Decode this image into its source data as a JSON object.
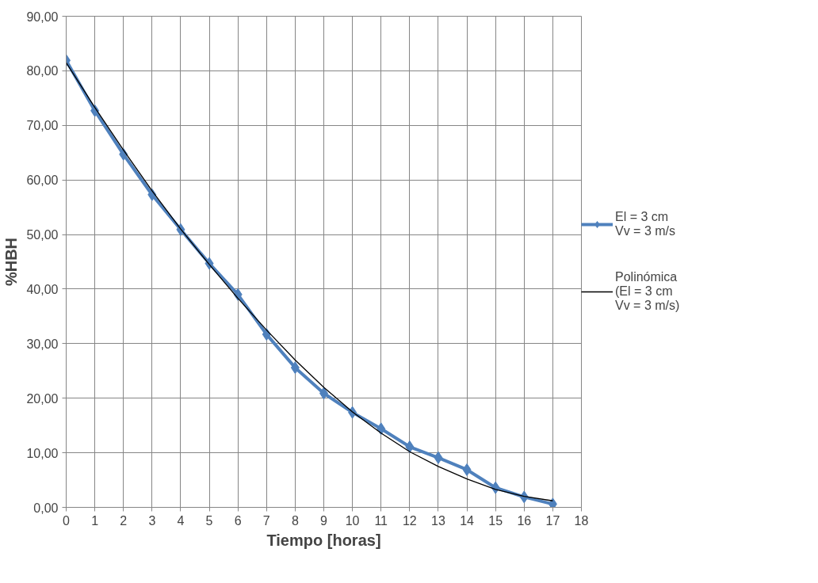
{
  "chart_data": {
    "type": "line",
    "xlabel": "Tiempo [horas]",
    "ylabel": "%HBH",
    "x": [
      0,
      1,
      2,
      3,
      4,
      5,
      6,
      7,
      8,
      9,
      10,
      11,
      12,
      13,
      14,
      15,
      16,
      17
    ],
    "series": [
      {
        "name": "El = 3 cm\nVv = 3 m/s",
        "color": "#4f81bd",
        "marker": "diamond",
        "values": [
          81.9,
          72.7,
          64.7,
          57.3,
          50.9,
          44.7,
          39.0,
          31.7,
          25.6,
          20.9,
          17.4,
          14.4,
          11.1,
          9.1,
          6.9,
          3.6,
          1.9,
          0.6
        ]
      },
      {
        "name": "Polinómica\n(El = 3 cm\nVv = 3 m/s)",
        "color": "#000000",
        "marker": "none",
        "values": [
          81.5,
          73.3,
          65.5,
          58.0,
          51.0,
          44.5,
          38.3,
          32.5,
          27.0,
          22.0,
          17.5,
          13.6,
          10.2,
          7.5,
          5.2,
          3.3,
          2.0,
          1.2
        ]
      }
    ],
    "xlim": [
      0,
      18
    ],
    "xticks": [
      0,
      1,
      2,
      3,
      4,
      5,
      6,
      7,
      8,
      9,
      10,
      11,
      12,
      13,
      14,
      15,
      16,
      17,
      18
    ],
    "ylim": [
      0,
      90
    ],
    "yticks": [
      {
        "value": 0,
        "label": "0,00"
      },
      {
        "value": 10,
        "label": "10,00"
      },
      {
        "value": 20,
        "label": "20,00"
      },
      {
        "value": 30,
        "label": "30,00"
      },
      {
        "value": 40,
        "label": "40,00"
      },
      {
        "value": 50,
        "label": "50,00"
      },
      {
        "value": 60,
        "label": "60,00"
      },
      {
        "value": 70,
        "label": "70,00"
      },
      {
        "value": 80,
        "label": "80,00"
      },
      {
        "value": 90,
        "label": "90,00"
      }
    ],
    "grid": true,
    "legend": "right",
    "line_style": "solid"
  }
}
